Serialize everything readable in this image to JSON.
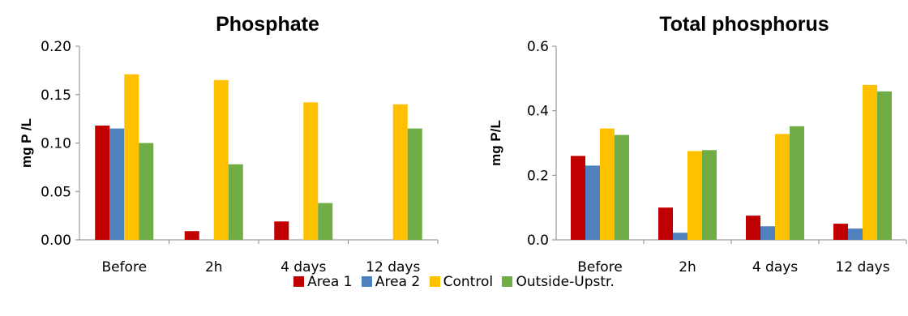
{
  "chart_data": [
    {
      "type": "bar",
      "title": "Phosphate",
      "ylabel": "mg P /L",
      "xlabel": "",
      "categories": [
        "Before",
        "2h",
        "4 days",
        "12 days"
      ],
      "ylim": [
        0,
        0.2
      ],
      "yticks": [
        "0.00",
        "0.05",
        "0.10",
        "0.15",
        "0.20"
      ],
      "series": [
        {
          "name": "Area 1",
          "color": "#c00000",
          "values": [
            0.118,
            0.009,
            0.019,
            0
          ]
        },
        {
          "name": "Area 2",
          "color": "#4f81bd",
          "values": [
            0.115,
            0,
            0,
            0
          ]
        },
        {
          "name": "Control",
          "color": "#ffc000",
          "values": [
            0.171,
            0.165,
            0.142,
            0.14
          ]
        },
        {
          "name": "Outside-Upstr.",
          "color": "#70ad47",
          "values": [
            0.1,
            0.078,
            0.038,
            0.115
          ]
        }
      ]
    },
    {
      "type": "bar",
      "title": "Total phosphorus",
      "ylabel": "mg P/L",
      "xlabel": "",
      "categories": [
        "Before",
        "2h",
        "4 days",
        "12 days"
      ],
      "ylim": [
        0,
        0.6
      ],
      "yticks": [
        "0.0",
        "0.2",
        "0.4",
        "0.6"
      ],
      "series": [
        {
          "name": "Area 1",
          "color": "#c00000",
          "values": [
            0.26,
            0.1,
            0.075,
            0.05
          ]
        },
        {
          "name": "Area 2",
          "color": "#4f81bd",
          "values": [
            0.23,
            0.022,
            0.042,
            0.035
          ]
        },
        {
          "name": "Control",
          "color": "#ffc000",
          "values": [
            0.345,
            0.275,
            0.328,
            0.48
          ]
        },
        {
          "name": "Outside-Upstr.",
          "color": "#70ad47",
          "values": [
            0.325,
            0.278,
            0.352,
            0.46
          ]
        }
      ]
    }
  ],
  "legend": {
    "items": [
      {
        "label": "Area 1",
        "color": "#c00000"
      },
      {
        "label": "Area 2",
        "color": "#4f81bd"
      },
      {
        "label": "Control",
        "color": "#ffc000"
      },
      {
        "label": "Outside-Upstr.",
        "color": "#70ad47"
      }
    ]
  }
}
